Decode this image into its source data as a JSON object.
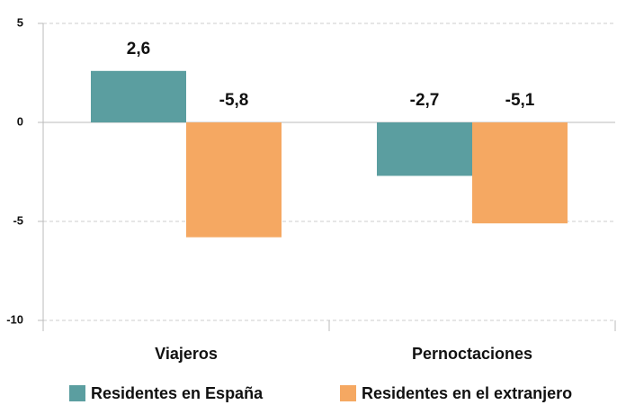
{
  "chart_data": {
    "type": "bar",
    "categories": [
      "Viajeros",
      "Pernoctaciones"
    ],
    "series": [
      {
        "name": "Residentes en España",
        "color": "#5b9ea0",
        "values": [
          2.6,
          -2.7
        ],
        "value_labels": [
          "2,6",
          "-2,7"
        ]
      },
      {
        "name": "Residentes en el extranjero",
        "color": "#f5a862",
        "values": [
          -5.8,
          -5.1
        ],
        "value_labels": [
          "-5,8",
          "-5,1"
        ]
      }
    ],
    "ylim": [
      -10,
      5
    ],
    "yticks": [
      -10,
      -5,
      0,
      5
    ],
    "grid": true
  }
}
